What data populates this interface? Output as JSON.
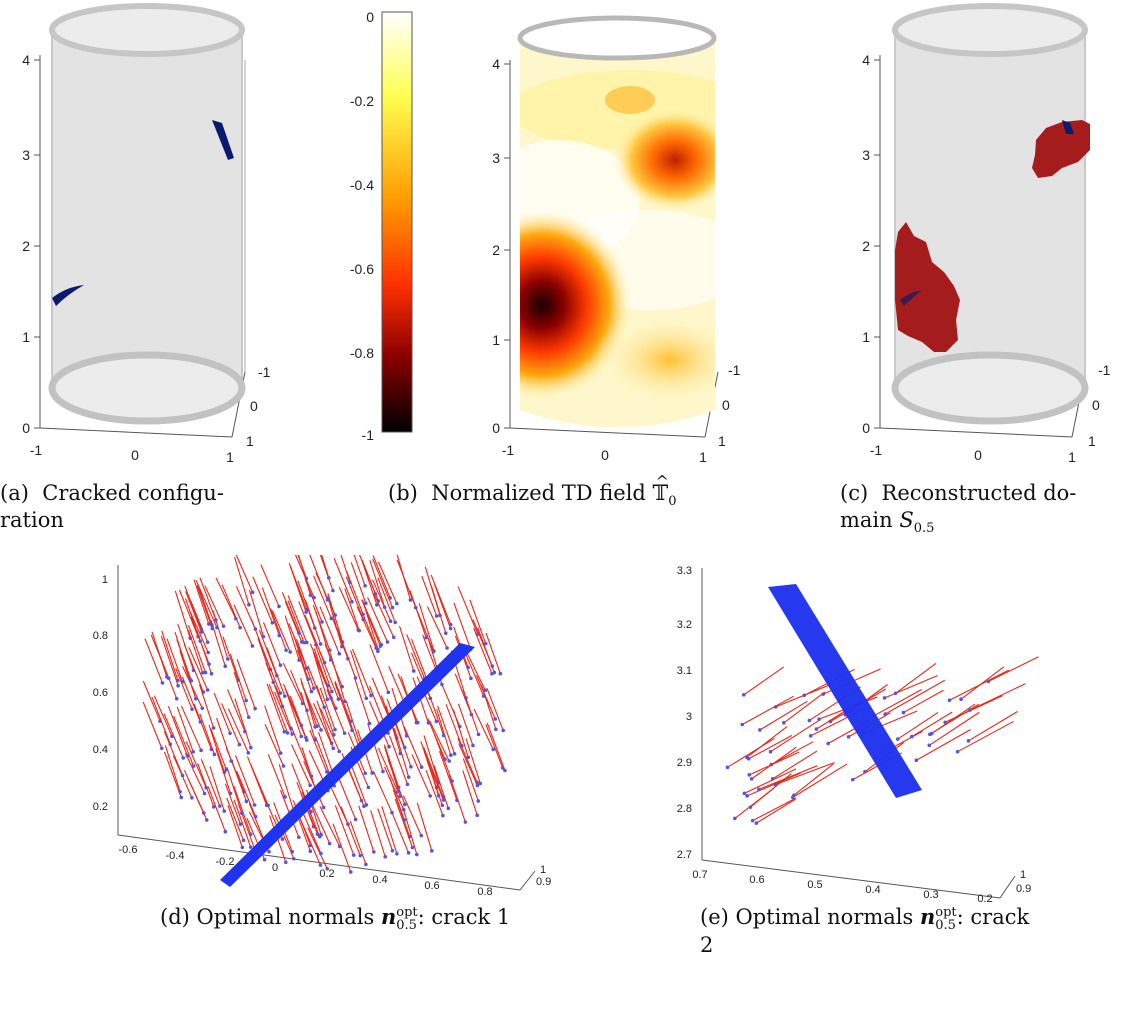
{
  "panels": {
    "a": {
      "z_ticks": [
        "0",
        "1",
        "2",
        "3",
        "4"
      ],
      "x_ticks": [
        "-1",
        "0",
        "1"
      ],
      "y_ticks": [
        "-1",
        "0",
        "1"
      ],
      "caption_label": "(a)",
      "caption_line1": "Cracked configu-",
      "caption_line2": "ration"
    },
    "b": {
      "colorbar_ticks": [
        "0",
        "-0.2",
        "-0.4",
        "-0.6",
        "-0.8",
        "-1"
      ],
      "colorbar_range": [
        -1,
        0
      ],
      "colormap": [
        "#000000",
        "#8b0000",
        "#ff3000",
        "#ff9a00",
        "#ffff40",
        "#ffffff"
      ],
      "z_ticks": [
        "0",
        "1",
        "2",
        "3",
        "4"
      ],
      "x_ticks": [
        "-1",
        "0",
        "1"
      ],
      "y_ticks": [
        "-1",
        "0",
        "1"
      ],
      "caption_label": "(b)",
      "caption_text": "Normalized TD field",
      "caption_symbol": "𝕋",
      "caption_sub": "0"
    },
    "c": {
      "z_ticks": [
        "0",
        "1",
        "2",
        "3",
        "4"
      ],
      "x_ticks": [
        "-1",
        "0",
        "1"
      ],
      "y_ticks": [
        "-1",
        "0",
        "1"
      ],
      "caption_label": "(c)",
      "caption_line1": "Reconstructed do-",
      "caption_line2_text": "main",
      "caption_symbol": "S",
      "caption_sub": "0.5"
    },
    "d": {
      "y_ticks": [
        "0.2",
        "0.4",
        "0.6",
        "0.8",
        "1"
      ],
      "x_ticks": [
        "-0.6",
        "-0.4",
        "-0.2",
        "0",
        "0.2",
        "0.4",
        "0.6",
        "0.8"
      ],
      "depth_ticks": [
        "1",
        "0.9"
      ],
      "caption_label": "(d)",
      "caption_text": "Optimal normals",
      "caption_symbol": "n",
      "caption_sub": "0.5",
      "caption_sup": "opt",
      "caption_suffix": ": crack 1"
    },
    "e": {
      "y_ticks": [
        "2.7",
        "2.8",
        "2.9",
        "3",
        "3.1",
        "3.2",
        "3.3"
      ],
      "x_ticks": [
        "0.7",
        "0.6",
        "0.5",
        "0.4",
        "0.3",
        "0.2"
      ],
      "depth_ticks": [
        "1",
        "0.9"
      ],
      "caption_label": "(e)",
      "caption_text": "Optimal normals",
      "caption_symbol": "n",
      "caption_sub": "0.5",
      "caption_sup": "opt",
      "caption_suffix_line1": ": crack",
      "caption_suffix_line2": "2"
    }
  },
  "colors": {
    "crack": "#0a1a6e",
    "reconstructed": "#a51c1c",
    "normal_vector": "#e8261a",
    "point": "#5555dd",
    "crack_band": "#2033ee"
  }
}
